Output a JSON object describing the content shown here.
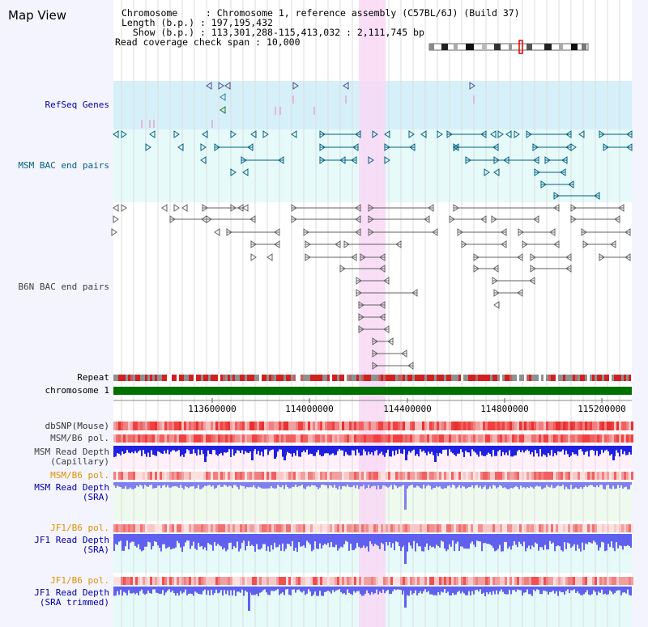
{
  "title": "Map View",
  "info": {
    "chromosome_key": "Chromosome",
    "chromosome_val": "Chromosome 1, reference assembly (C57BL/6J) (Build 37)",
    "length_key": "Length (b.p.)",
    "length_val": "197,195,432",
    "show_key": "Show (b.p.)",
    "show_val": "113,301,288-115,413,032 : 2,111,745 bp",
    "span_key": "Read coverage check span",
    "span_val": "10,000"
  },
  "tracks": {
    "refseq": "RefSeq Genes",
    "msm_bac": "MSM BAC end pairs",
    "b6n_bac": "B6N BAC end pairs",
    "repeat": "Repeat",
    "chromosome": "chromosome 1",
    "dbsnp": "dbSNP(Mouse)",
    "msm_b6_pol_1": "MSM/B6 pol.",
    "msm_read_depth_cap_1": "MSM Read Depth",
    "msm_read_depth_cap_2": "(Capillary)",
    "msm_b6_pol_2": "MSM/B6 pol.",
    "msm_read_depth_sra_1": "MSM Read Depth",
    "msm_read_depth_sra_2": "(SRA)",
    "jf1_b6_pol_1": "JF1/B6 pol.",
    "jf1_read_depth_sra_1": "JF1 Read Depth",
    "jf1_read_depth_sra_2": "(SRA)",
    "jf1_b6_pol_2": "JF1/B6 pol.",
    "jf1_read_depth_trim_1": "JF1 Read Depth",
    "jf1_read_depth_trim_2": "(SRA trimmed)"
  },
  "axis": {
    "ticks": [
      "113600000",
      "114000000",
      "114400000",
      "114800000",
      "115200000"
    ]
  },
  "colors": {
    "refseq_bg": "#d6f0fa",
    "msm_bg": "#e6fafa",
    "highlight": "#f8d8f4",
    "chromosome_bar": "#007000",
    "msm_label": "#006080",
    "blue_label": "#0000a0",
    "orange_label": "#e09000"
  }
}
